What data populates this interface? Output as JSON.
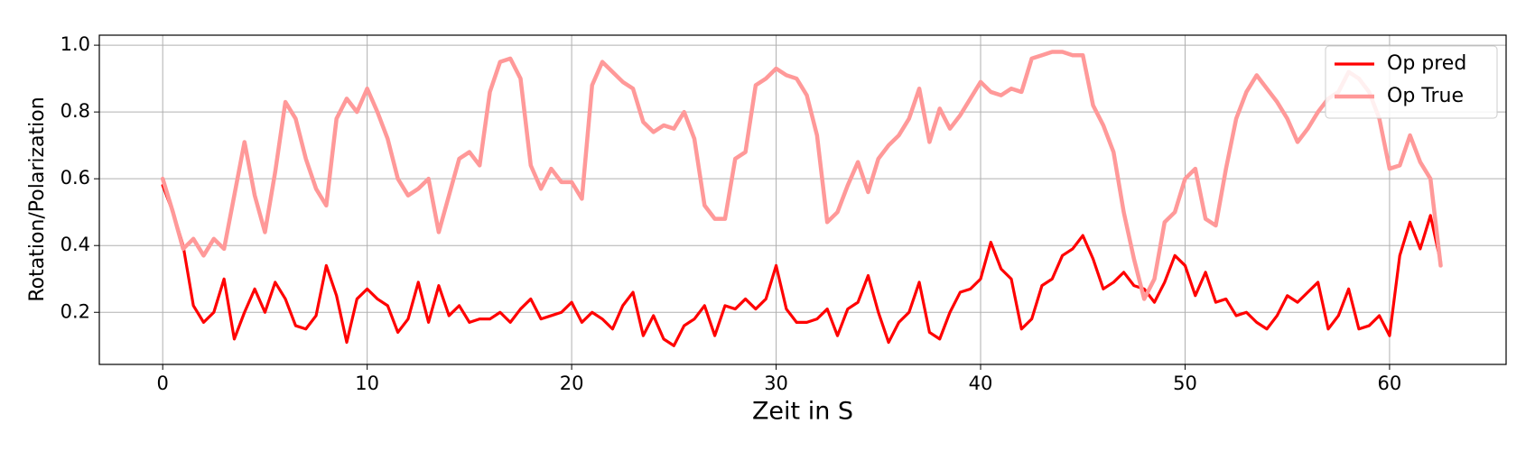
{
  "chart_data": {
    "type": "line",
    "xlabel": "Zeit in S",
    "ylabel": "Rotation/Polarization",
    "x": [
      0,
      0.5,
      1,
      1.5,
      2,
      2.5,
      3,
      3.5,
      4,
      4.5,
      5,
      5.5,
      6,
      6.5,
      7,
      7.5,
      8,
      8.5,
      9,
      9.5,
      10,
      10.5,
      11,
      11.5,
      12,
      12.5,
      13,
      13.5,
      14,
      14.5,
      15,
      15.5,
      16,
      16.5,
      17,
      17.5,
      18,
      18.5,
      19,
      19.5,
      20,
      20.5,
      21,
      21.5,
      22,
      22.5,
      23,
      23.5,
      24,
      24.5,
      25,
      25.5,
      26,
      26.5,
      27,
      27.5,
      28,
      28.5,
      29,
      29.5,
      30,
      30.5,
      31,
      31.5,
      32,
      32.5,
      33,
      33.5,
      34,
      34.5,
      35,
      35.5,
      36,
      36.5,
      37,
      37.5,
      38,
      38.5,
      39,
      39.5,
      40,
      40.5,
      41,
      41.5,
      42,
      42.5,
      43,
      43.5,
      44,
      44.5,
      45,
      45.5,
      46,
      46.5,
      47,
      47.5,
      48,
      48.5,
      49,
      49.5,
      50,
      50.5,
      51,
      51.5,
      52,
      52.5,
      53,
      53.5,
      54,
      54.5,
      55,
      55.5,
      56,
      56.5,
      57,
      57.5,
      58,
      58.5,
      59,
      59.5,
      60,
      60.5,
      61,
      61.5,
      62,
      62.5
    ],
    "series": [
      {
        "name": "Op pred",
        "color": "#ff0000",
        "width": 3.2,
        "values": [
          0.58,
          0.5,
          0.4,
          0.22,
          0.17,
          0.2,
          0.3,
          0.12,
          0.2,
          0.27,
          0.2,
          0.29,
          0.24,
          0.16,
          0.15,
          0.19,
          0.34,
          0.25,
          0.11,
          0.24,
          0.27,
          0.24,
          0.22,
          0.14,
          0.18,
          0.29,
          0.17,
          0.28,
          0.19,
          0.22,
          0.17,
          0.18,
          0.18,
          0.2,
          0.17,
          0.21,
          0.24,
          0.18,
          0.19,
          0.2,
          0.23,
          0.17,
          0.2,
          0.18,
          0.15,
          0.22,
          0.26,
          0.13,
          0.19,
          0.12,
          0.1,
          0.16,
          0.18,
          0.22,
          0.13,
          0.22,
          0.21,
          0.24,
          0.21,
          0.24,
          0.34,
          0.21,
          0.17,
          0.17,
          0.18,
          0.21,
          0.13,
          0.21,
          0.23,
          0.31,
          0.2,
          0.11,
          0.17,
          0.2,
          0.29,
          0.14,
          0.12,
          0.2,
          0.26,
          0.27,
          0.3,
          0.41,
          0.33,
          0.3,
          0.15,
          0.18,
          0.28,
          0.3,
          0.37,
          0.39,
          0.43,
          0.36,
          0.27,
          0.29,
          0.32,
          0.28,
          0.27,
          0.23,
          0.29,
          0.37,
          0.34,
          0.25,
          0.32,
          0.23,
          0.24,
          0.19,
          0.2,
          0.17,
          0.15,
          0.19,
          0.25,
          0.23,
          0.26,
          0.29,
          0.15,
          0.19,
          0.27,
          0.15,
          0.16,
          0.19,
          0.13,
          0.37,
          0.47,
          0.39,
          0.49,
          0.35
        ]
      },
      {
        "name": "Op True",
        "color": "#ff9999",
        "width": 4.5,
        "values": [
          0.6,
          0.5,
          0.39,
          0.42,
          0.37,
          0.42,
          0.39,
          0.55,
          0.71,
          0.55,
          0.44,
          0.62,
          0.83,
          0.78,
          0.66,
          0.57,
          0.52,
          0.78,
          0.84,
          0.8,
          0.87,
          0.8,
          0.72,
          0.6,
          0.55,
          0.57,
          0.6,
          0.44,
          0.55,
          0.66,
          0.68,
          0.64,
          0.86,
          0.95,
          0.96,
          0.9,
          0.64,
          0.57,
          0.63,
          0.59,
          0.59,
          0.54,
          0.88,
          0.95,
          0.92,
          0.89,
          0.87,
          0.77,
          0.74,
          0.76,
          0.75,
          0.8,
          0.72,
          0.52,
          0.48,
          0.48,
          0.66,
          0.68,
          0.88,
          0.9,
          0.93,
          0.91,
          0.9,
          0.85,
          0.73,
          0.47,
          0.5,
          0.58,
          0.65,
          0.56,
          0.66,
          0.7,
          0.73,
          0.78,
          0.87,
          0.71,
          0.81,
          0.75,
          0.79,
          0.84,
          0.89,
          0.86,
          0.85,
          0.87,
          0.86,
          0.96,
          0.97,
          0.98,
          0.98,
          0.97,
          0.97,
          0.82,
          0.76,
          0.68,
          0.5,
          0.36,
          0.24,
          0.3,
          0.47,
          0.5,
          0.6,
          0.63,
          0.48,
          0.46,
          0.63,
          0.78,
          0.86,
          0.91,
          0.87,
          0.83,
          0.78,
          0.71,
          0.75,
          0.8,
          0.84,
          0.86,
          0.92,
          0.9,
          0.86,
          0.78,
          0.63,
          0.64,
          0.73,
          0.65,
          0.6,
          0.34
        ]
      }
    ],
    "xlim": [
      -3.1,
      65.7
    ],
    "ylim": [
      0.044,
      1.03
    ],
    "xticks": [
      0,
      10,
      20,
      30,
      40,
      50,
      60
    ],
    "yticks": [
      0.2,
      0.4,
      0.6,
      0.8,
      {
        "value": 1,
        "label": "1.0"
      }
    ],
    "grid": true,
    "legend": "upper right"
  }
}
